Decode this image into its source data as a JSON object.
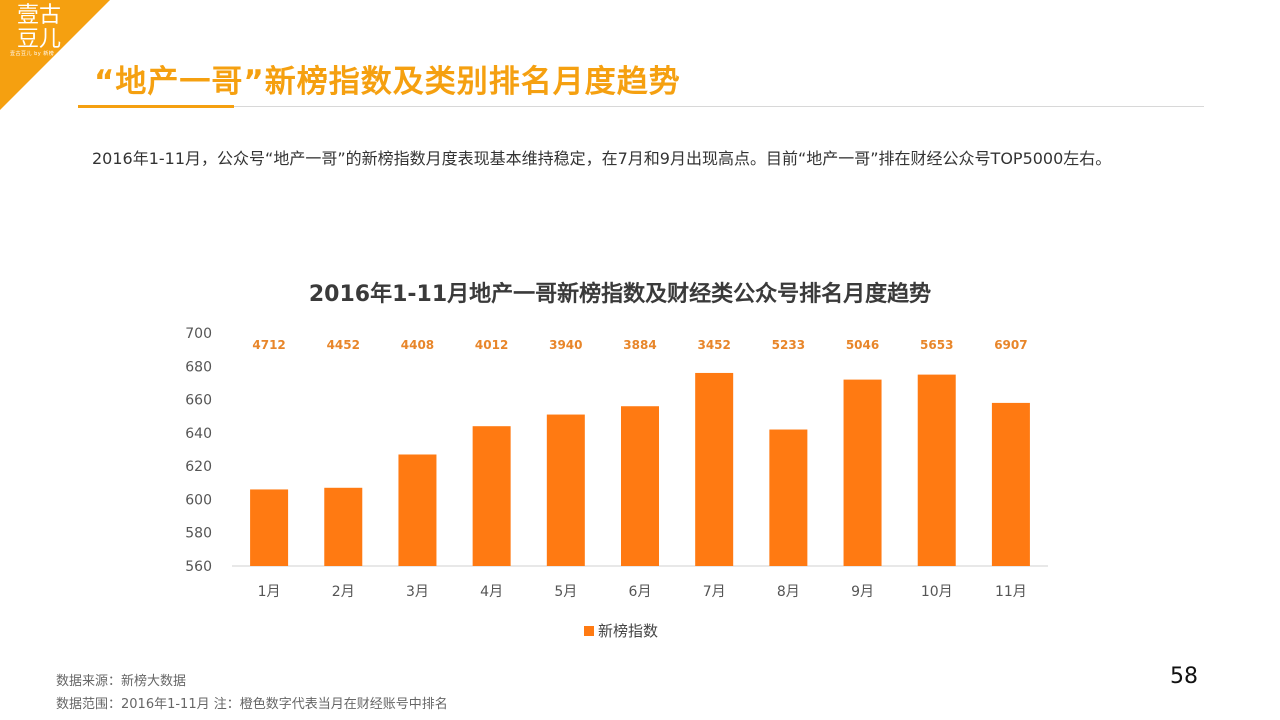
{
  "logo": {
    "text": "壹古豆儿",
    "subtext": "壹古豆儿 by 新榜",
    "accent_color": "#f5a010"
  },
  "slide": {
    "title": "“地产一哥”新榜指数及类别排名月度趋势",
    "summary": "2016年1-11月，公众号“地产一哥”的新榜指数月度表现基本维持稳定，在7月和9月出现高点。目前“地产一哥”排在财经公众号TOP5000左右。"
  },
  "chart_data": {
    "type": "bar",
    "title": "2016年1-11月地产一哥新榜指数及财经类公众号排名月度趋势",
    "categories": [
      "1月",
      "2月",
      "3月",
      "4月",
      "5月",
      "6月",
      "7月",
      "8月",
      "9月",
      "10月",
      "11月"
    ],
    "series": [
      {
        "name": "新榜指数",
        "color": "#ff7a12",
        "values": [
          606,
          607,
          627,
          644,
          651,
          656,
          676,
          642,
          672,
          675,
          658
        ]
      }
    ],
    "rank_labels": [
      "4712",
      "4452",
      "4408",
      "4012",
      "3940",
      "3884",
      "3452",
      "5233",
      "5046",
      "5653",
      "6907"
    ],
    "rank_label_color": "#e8862a",
    "ylim": [
      560,
      700
    ],
    "yticks": [
      "560",
      "580",
      "600",
      "620",
      "640",
      "660",
      "680",
      "700"
    ],
    "grid": false,
    "legend_position": "bottom"
  },
  "footer": {
    "source": "数据来源：新榜大数据",
    "range": "数据范围：2016年1-11月  注：橙色数字代表当月在财经账号中排名",
    "page_number": "58"
  }
}
